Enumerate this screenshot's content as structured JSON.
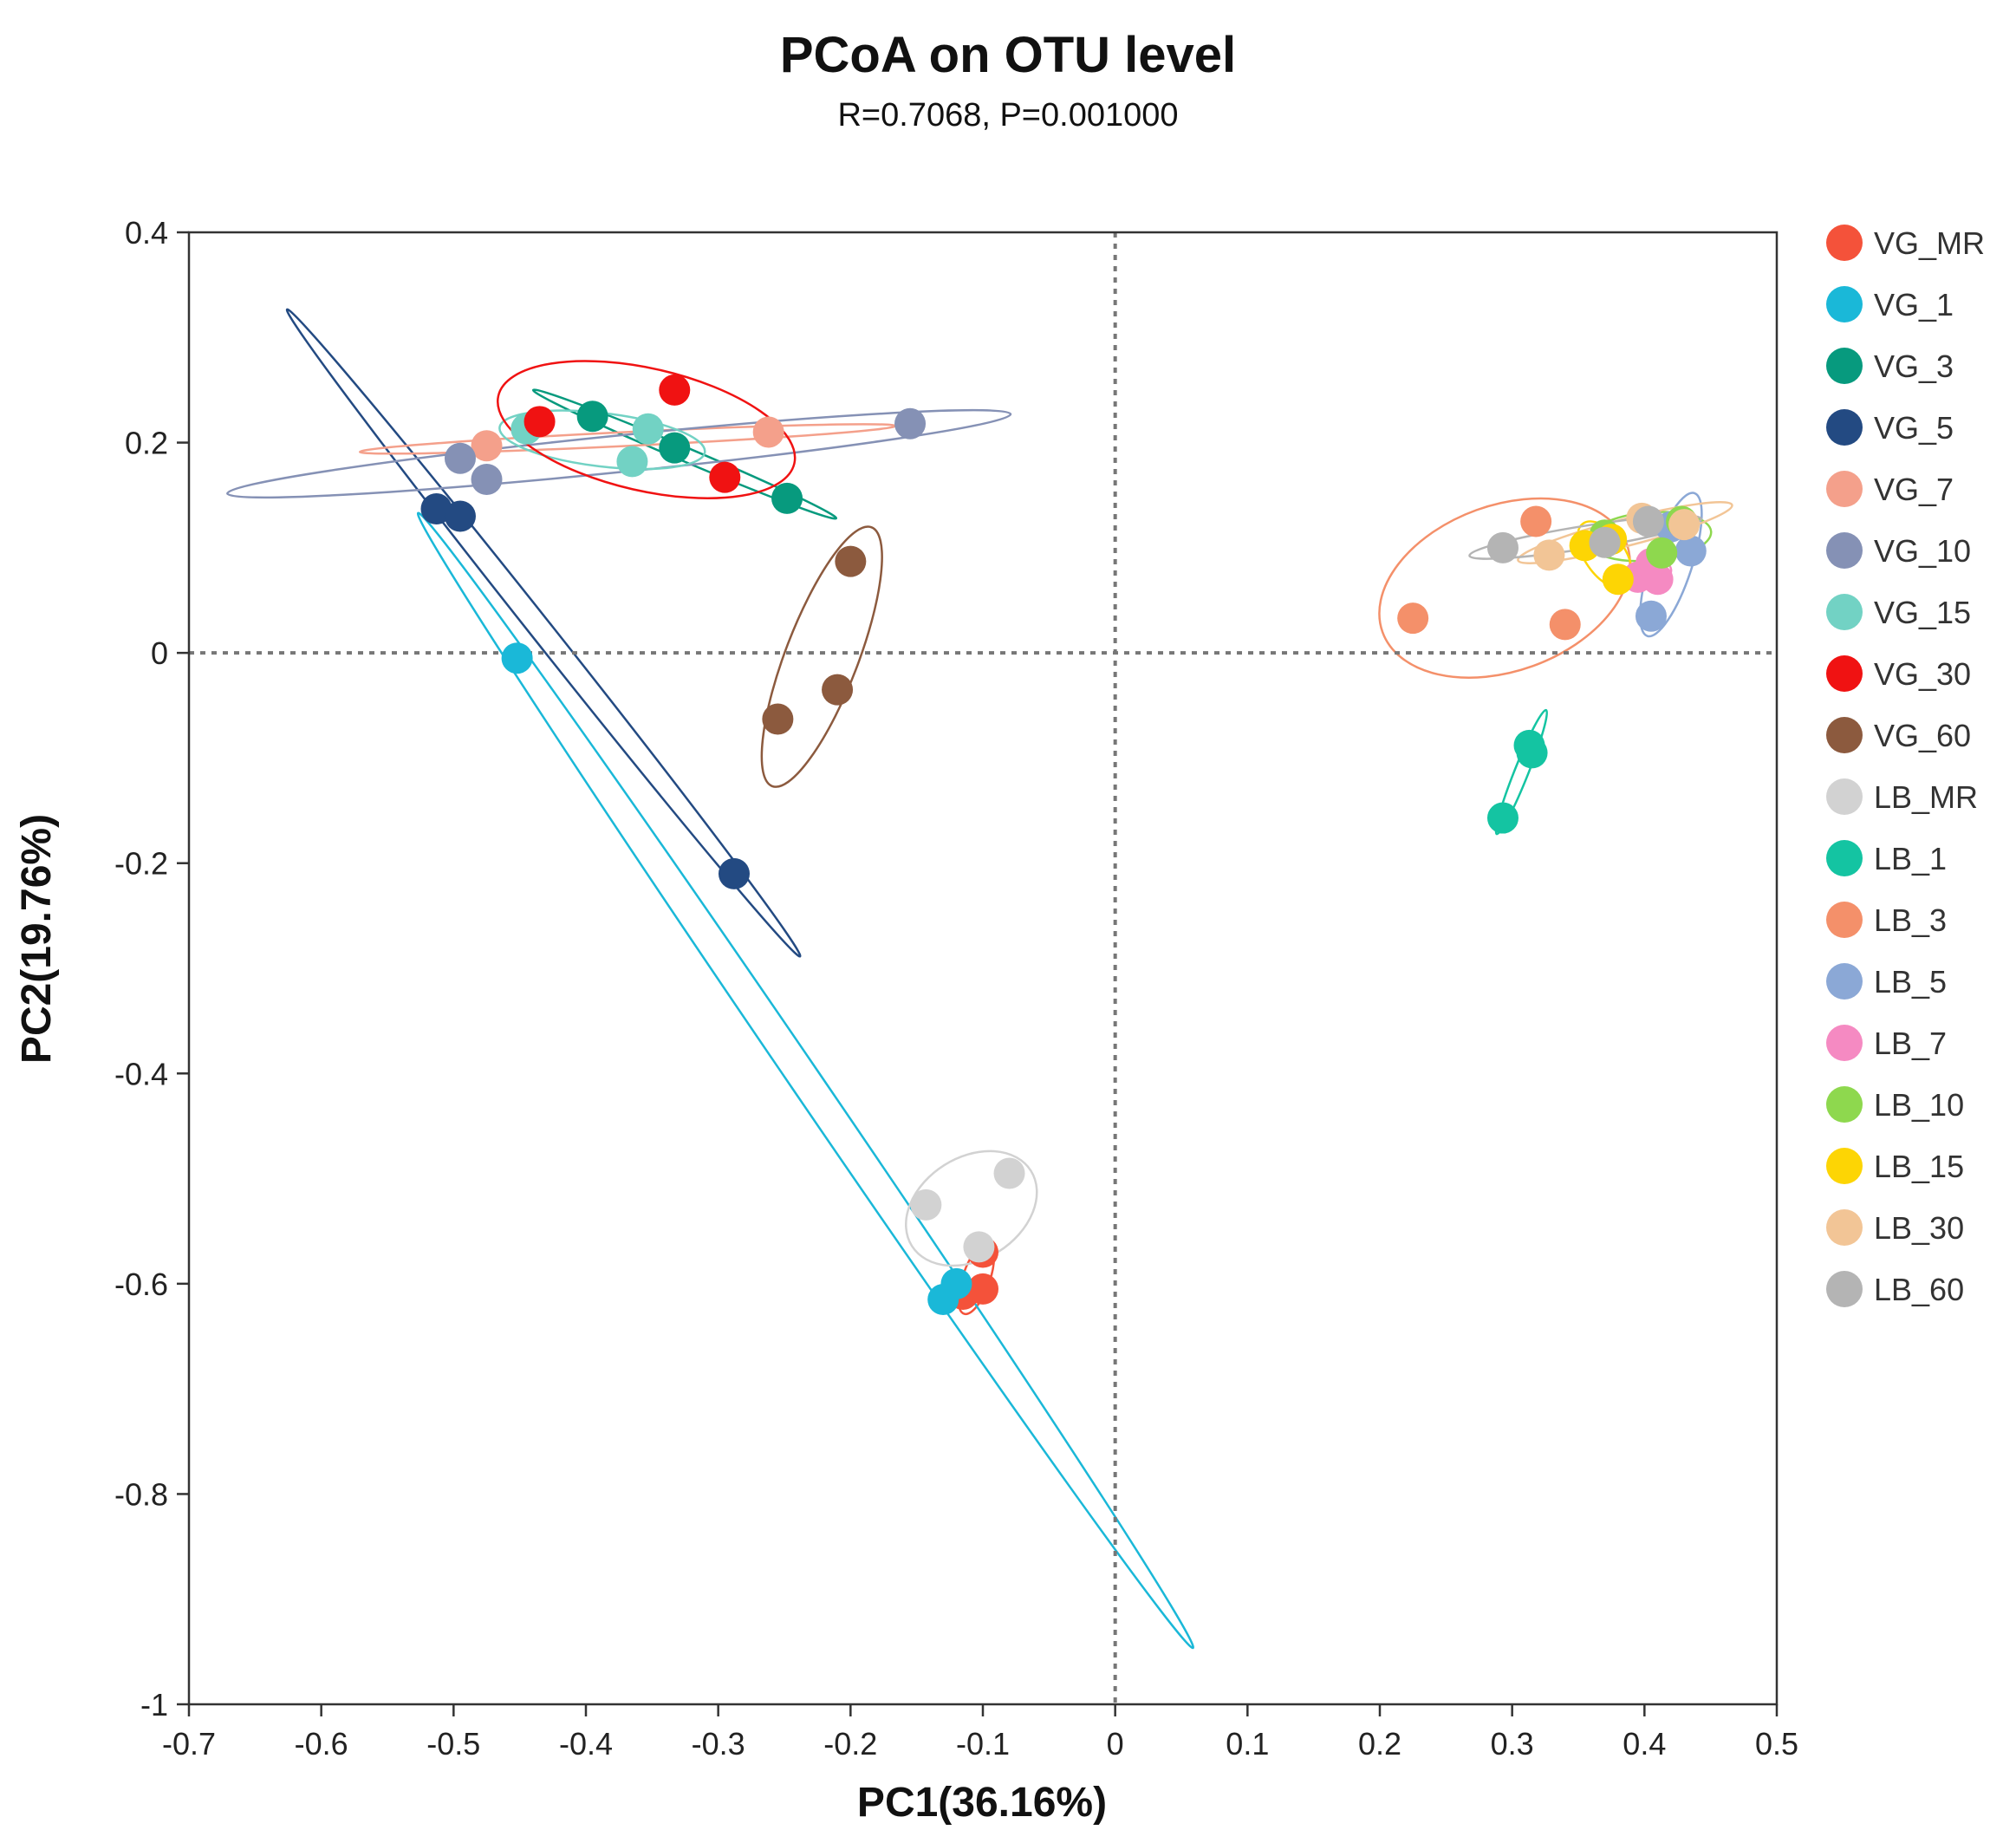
{
  "chart_data": {
    "type": "scatter",
    "title": "PCoA on OTU level",
    "subtitle": "R=0.7068, P=0.001000",
    "xlabel": "PC1(36.16%)",
    "ylabel": "PC2(19.76%)",
    "xlim": [
      -0.7,
      0.5
    ],
    "ylim": [
      -1,
      0.4
    ],
    "xticks": [
      -0.7,
      -0.6,
      -0.5,
      -0.4,
      -0.3,
      -0.2,
      -0.1,
      0,
      0.1,
      0.2,
      0.3,
      0.4,
      0.5
    ],
    "xtick_labels": [
      "-0.7",
      "-0.6",
      "-0.5",
      "-0.4",
      "-0.3",
      "-0.2",
      "-0.1",
      "0",
      "0.1",
      "0.2",
      "0.3",
      "0.4",
      "0.5"
    ],
    "yticks": [
      0.4,
      0.2,
      0,
      -0.2,
      -0.4,
      -0.6,
      -0.8,
      -1
    ],
    "ytick_labels": [
      "0.4",
      "0.2",
      "0",
      "-0.2",
      "-0.4",
      "-0.6",
      "-0.8",
      "-1"
    ],
    "reference_lines": {
      "x": 0,
      "y": 0,
      "style": "dotted"
    },
    "legend_position": "right",
    "series": [
      {
        "name": "VG_MR",
        "color": "#f4523a",
        "points": [
          [
            -0.115,
            -0.61
          ],
          [
            -0.1,
            -0.605
          ],
          [
            -0.1,
            -0.57
          ]
        ]
      },
      {
        "name": "VG_1",
        "color": "#1ab8d8",
        "points": [
          [
            -0.452,
            -0.005
          ],
          [
            -0.13,
            -0.615
          ],
          [
            -0.12,
            -0.6
          ]
        ]
      },
      {
        "name": "VG_3",
        "color": "#079a7e",
        "points": [
          [
            -0.395,
            0.225
          ],
          [
            -0.333,
            0.195
          ],
          [
            -0.248,
            0.147
          ]
        ]
      },
      {
        "name": "VG_5",
        "color": "#234a82",
        "points": [
          [
            -0.513,
            0.137
          ],
          [
            -0.495,
            0.13
          ],
          [
            -0.288,
            -0.21
          ]
        ]
      },
      {
        "name": "VG_7",
        "color": "#f4a08b",
        "points": [
          [
            -0.475,
            0.197
          ],
          [
            -0.262,
            0.21
          ]
        ]
      },
      {
        "name": "VG_10",
        "color": "#8591b5",
        "points": [
          [
            -0.495,
            0.185
          ],
          [
            -0.475,
            0.165
          ],
          [
            -0.155,
            0.218
          ]
        ]
      },
      {
        "name": "VG_15",
        "color": "#72d2c4",
        "points": [
          [
            -0.445,
            0.213
          ],
          [
            -0.353,
            0.213
          ],
          [
            -0.365,
            0.182
          ]
        ]
      },
      {
        "name": "VG_30",
        "color": "#f01212",
        "points": [
          [
            -0.435,
            0.22
          ],
          [
            -0.333,
            0.25
          ],
          [
            -0.295,
            0.167
          ]
        ]
      },
      {
        "name": "VG_60",
        "color": "#8c5a3e",
        "points": [
          [
            -0.2,
            0.087
          ],
          [
            -0.21,
            -0.035
          ],
          [
            -0.255,
            -0.063
          ]
        ]
      },
      {
        "name": "LB_MR",
        "color": "#d2d2d2",
        "points": [
          [
            -0.143,
            -0.525
          ],
          [
            -0.08,
            -0.495
          ],
          [
            -0.103,
            -0.565
          ]
        ]
      },
      {
        "name": "LB_1",
        "color": "#14c4a2",
        "points": [
          [
            0.313,
            -0.088
          ],
          [
            0.315,
            -0.095
          ],
          [
            0.293,
            -0.157
          ]
        ]
      },
      {
        "name": "LB_3",
        "color": "#f4906a",
        "points": [
          [
            0.225,
            0.033
          ],
          [
            0.318,
            0.125
          ],
          [
            0.34,
            0.027
          ]
        ]
      },
      {
        "name": "LB_5",
        "color": "#8ba8d6",
        "points": [
          [
            0.405,
            0.035
          ],
          [
            0.435,
            0.097
          ],
          [
            0.42,
            0.12
          ]
        ]
      },
      {
        "name": "LB_7",
        "color": "#f58ac2",
        "points": [
          [
            0.395,
            0.072
          ],
          [
            0.41,
            0.07
          ],
          [
            0.405,
            0.085
          ]
        ]
      },
      {
        "name": "LB_10",
        "color": "#8ed84e",
        "points": [
          [
            0.37,
            0.112
          ],
          [
            0.413,
            0.095
          ],
          [
            0.428,
            0.125
          ]
        ]
      },
      {
        "name": "LB_15",
        "color": "#fdd504",
        "points": [
          [
            0.355,
            0.102
          ],
          [
            0.38,
            0.07
          ],
          [
            0.375,
            0.108
          ]
        ]
      },
      {
        "name": "LB_30",
        "color": "#f2c596",
        "points": [
          [
            0.328,
            0.093
          ],
          [
            0.398,
            0.128
          ],
          [
            0.43,
            0.122
          ]
        ]
      },
      {
        "name": "LB_60",
        "color": "#b4b4b4",
        "points": [
          [
            0.293,
            0.1
          ],
          [
            0.37,
            0.105
          ],
          [
            0.403,
            0.125
          ]
        ]
      }
    ]
  }
}
